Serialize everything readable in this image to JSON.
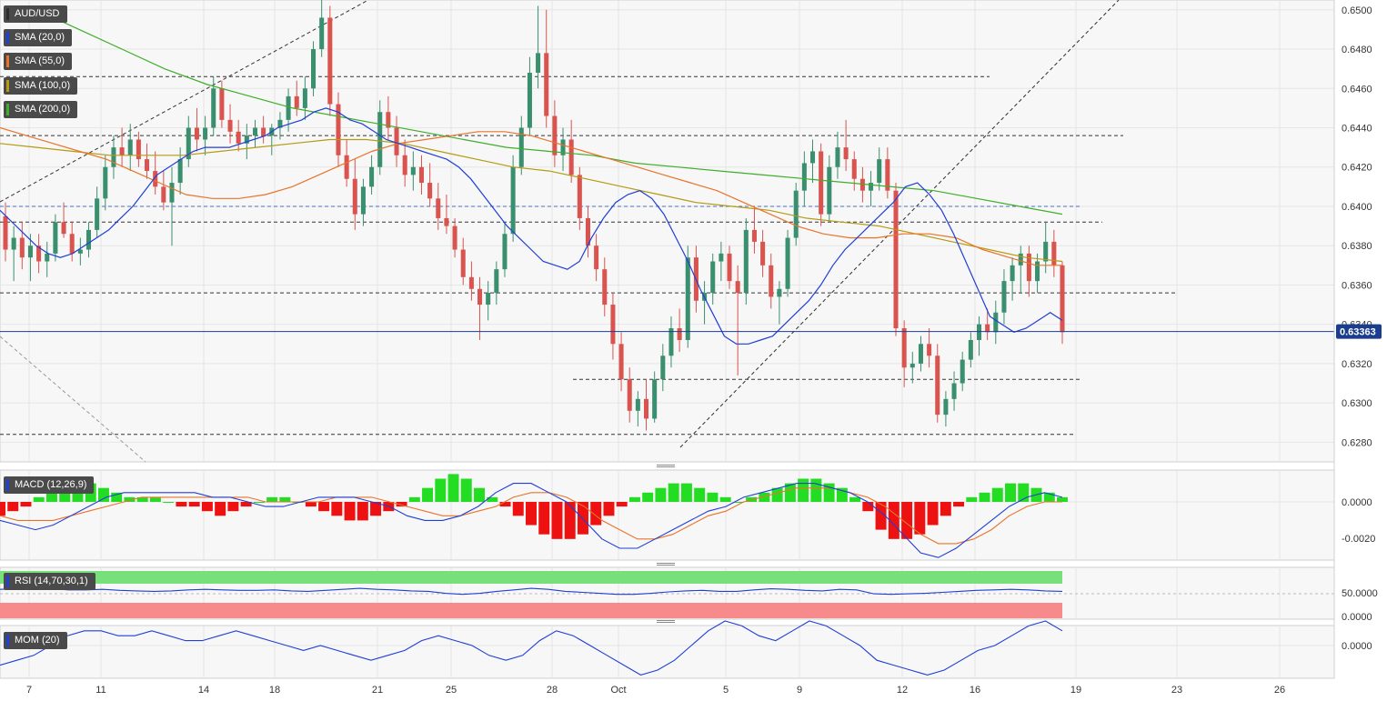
{
  "instrument": "AUD/USD",
  "current_price": "0.63363",
  "panels": {
    "price": {
      "indicators": [
        {
          "label": "SMA (20,0)",
          "color": "#1f3fd6"
        },
        {
          "label": "SMA (55,0)",
          "color": "#e8742a"
        },
        {
          "label": "SMA (100,0)",
          "color": "#b59a12"
        },
        {
          "label": "SMA (200,0)",
          "color": "#3fae2a"
        }
      ],
      "y_ticks": [
        "0.6500",
        "0.6480",
        "0.6460",
        "0.6440",
        "0.6420",
        "0.6400",
        "0.6380",
        "0.6360",
        "0.6340",
        "0.6320",
        "0.6300",
        "0.6280"
      ]
    },
    "macd": {
      "label": "MACD (12,26,9)",
      "y_ticks": [
        "0.0000",
        "-0.0020"
      ]
    },
    "rsi": {
      "label": "RSI (14,70,30,1)",
      "y_ticks": [
        "50.0000",
        "0.0000"
      ]
    },
    "mom": {
      "label": "MOM (20)",
      "y_ticks": [
        "0.0000"
      ]
    }
  },
  "x_ticks": [
    "7",
    "11",
    "14",
    "18",
    "21",
    "25",
    "28",
    "Oct",
    "5",
    "9",
    "12",
    "16",
    "19",
    "23",
    "26"
  ],
  "colors": {
    "up": "#3a8f6e",
    "down": "#d9534f",
    "grid": "#e6e6e6",
    "panel_bg": "#f7f7f7",
    "current_line": "#1a3d8f",
    "hist_up": "#22dd22",
    "hist_down": "#ee1111"
  },
  "chart_data": {
    "type": "candlestick",
    "title": "AUD/USD",
    "ylim": [
      0.627,
      0.6505
    ],
    "ohlc": [
      [
        0.6395,
        0.6402,
        0.6372,
        0.6378
      ],
      [
        0.6378,
        0.639,
        0.6362,
        0.6384
      ],
      [
        0.6384,
        0.6392,
        0.6368,
        0.6374
      ],
      [
        0.6374,
        0.6386,
        0.6362,
        0.638
      ],
      [
        0.638,
        0.6386,
        0.6366,
        0.6372
      ],
      [
        0.6372,
        0.6382,
        0.6364,
        0.6376
      ],
      [
        0.6376,
        0.6396,
        0.6372,
        0.6392
      ],
      [
        0.6392,
        0.6402,
        0.6384,
        0.6386
      ],
      [
        0.6386,
        0.6392,
        0.6372,
        0.6376
      ],
      [
        0.6376,
        0.6384,
        0.637,
        0.6378
      ],
      [
        0.6378,
        0.6392,
        0.6374,
        0.6388
      ],
      [
        0.6388,
        0.641,
        0.6384,
        0.6404
      ],
      [
        0.6404,
        0.6426,
        0.6398,
        0.642
      ],
      [
        0.642,
        0.6436,
        0.6414,
        0.643
      ],
      [
        0.643,
        0.644,
        0.642,
        0.6426
      ],
      [
        0.6426,
        0.6442,
        0.6418,
        0.6434
      ],
      [
        0.6434,
        0.6438,
        0.642,
        0.6424
      ],
      [
        0.6424,
        0.6432,
        0.6414,
        0.6418
      ],
      [
        0.6418,
        0.6428,
        0.6406,
        0.641
      ],
      [
        0.641,
        0.6418,
        0.6398,
        0.6402
      ],
      [
        0.6402,
        0.642,
        0.638,
        0.6412
      ],
      [
        0.6412,
        0.643,
        0.6406,
        0.6424
      ],
      [
        0.6424,
        0.6446,
        0.642,
        0.644
      ],
      [
        0.644,
        0.645,
        0.6428,
        0.6434
      ],
      [
        0.6434,
        0.6446,
        0.6426,
        0.644
      ],
      [
        0.644,
        0.6466,
        0.6436,
        0.646
      ],
      [
        0.646,
        0.6464,
        0.644,
        0.6444
      ],
      [
        0.6444,
        0.6452,
        0.6432,
        0.6438
      ],
      [
        0.6438,
        0.6444,
        0.6428,
        0.6432
      ],
      [
        0.6432,
        0.6442,
        0.6424,
        0.6436
      ],
      [
        0.6436,
        0.6444,
        0.643,
        0.644
      ],
      [
        0.644,
        0.6446,
        0.6432,
        0.6436
      ],
      [
        0.6436,
        0.6442,
        0.6426,
        0.644
      ],
      [
        0.644,
        0.6448,
        0.6434,
        0.6444
      ],
      [
        0.6444,
        0.646,
        0.6438,
        0.6456
      ],
      [
        0.6456,
        0.6464,
        0.6446,
        0.645
      ],
      [
        0.645,
        0.6466,
        0.6444,
        0.646
      ],
      [
        0.646,
        0.6484,
        0.6456,
        0.648
      ],
      [
        0.648,
        0.651,
        0.6476,
        0.6496
      ],
      [
        0.6496,
        0.6502,
        0.6446,
        0.6452
      ],
      [
        0.6452,
        0.6458,
        0.642,
        0.6426
      ],
      [
        0.6426,
        0.6434,
        0.641,
        0.6414
      ],
      [
        0.6414,
        0.6424,
        0.6388,
        0.6396
      ],
      [
        0.6396,
        0.6414,
        0.639,
        0.641
      ],
      [
        0.641,
        0.6426,
        0.6406,
        0.642
      ],
      [
        0.642,
        0.6454,
        0.6416,
        0.6448
      ],
      [
        0.6448,
        0.6456,
        0.6434,
        0.644
      ],
      [
        0.644,
        0.6446,
        0.642,
        0.6426
      ],
      [
        0.6426,
        0.6434,
        0.641,
        0.6416
      ],
      [
        0.6416,
        0.6428,
        0.6408,
        0.642
      ],
      [
        0.642,
        0.6426,
        0.6406,
        0.6412
      ],
      [
        0.6412,
        0.6422,
        0.64,
        0.6404
      ],
      [
        0.6404,
        0.6412,
        0.6388,
        0.6394
      ],
      [
        0.6394,
        0.6406,
        0.6386,
        0.639
      ],
      [
        0.639,
        0.6394,
        0.6374,
        0.6378
      ],
      [
        0.6378,
        0.6384,
        0.636,
        0.6364
      ],
      [
        0.6364,
        0.6372,
        0.6352,
        0.6358
      ],
      [
        0.6358,
        0.6364,
        0.6332,
        0.635
      ],
      [
        0.635,
        0.6362,
        0.6342,
        0.6356
      ],
      [
        0.6356,
        0.6372,
        0.635,
        0.6368
      ],
      [
        0.6368,
        0.6392,
        0.6364,
        0.6386
      ],
      [
        0.6386,
        0.6426,
        0.6382,
        0.642
      ],
      [
        0.642,
        0.6446,
        0.6416,
        0.644
      ],
      [
        0.644,
        0.6476,
        0.6436,
        0.6468
      ],
      [
        0.6468,
        0.6502,
        0.646,
        0.6478
      ],
      [
        0.6478,
        0.65,
        0.644,
        0.6446
      ],
      [
        0.6446,
        0.6454,
        0.642,
        0.6426
      ],
      [
        0.6426,
        0.644,
        0.6418,
        0.6434
      ],
      [
        0.6434,
        0.6444,
        0.6412,
        0.6416
      ],
      [
        0.6416,
        0.642,
        0.6388,
        0.6394
      ],
      [
        0.6394,
        0.64,
        0.6374,
        0.638
      ],
      [
        0.638,
        0.6386,
        0.6362,
        0.6368
      ],
      [
        0.6368,
        0.6374,
        0.6344,
        0.635
      ],
      [
        0.635,
        0.6356,
        0.6322,
        0.633
      ],
      [
        0.633,
        0.6336,
        0.6306,
        0.6312
      ],
      [
        0.6312,
        0.6318,
        0.629,
        0.6296
      ],
      [
        0.6296,
        0.6306,
        0.6288,
        0.6302
      ],
      [
        0.6302,
        0.6312,
        0.6286,
        0.6292
      ],
      [
        0.6292,
        0.6316,
        0.629,
        0.6312
      ],
      [
        0.6312,
        0.633,
        0.6306,
        0.6324
      ],
      [
        0.6324,
        0.6344,
        0.6318,
        0.6338
      ],
      [
        0.6338,
        0.6348,
        0.6326,
        0.6332
      ],
      [
        0.6332,
        0.638,
        0.6328,
        0.6374
      ],
      [
        0.6374,
        0.638,
        0.6346,
        0.6352
      ],
      [
        0.6352,
        0.6362,
        0.634,
        0.6356
      ],
      [
        0.6356,
        0.6376,
        0.635,
        0.6372
      ],
      [
        0.6372,
        0.6382,
        0.6362,
        0.6376
      ],
      [
        0.6376,
        0.638,
        0.6358,
        0.6362
      ],
      [
        0.6362,
        0.637,
        0.6314,
        0.6356
      ],
      [
        0.6356,
        0.6394,
        0.635,
        0.6388
      ],
      [
        0.6388,
        0.64,
        0.6376,
        0.6382
      ],
      [
        0.6382,
        0.6388,
        0.6364,
        0.637
      ],
      [
        0.637,
        0.6376,
        0.6348,
        0.6354
      ],
      [
        0.6354,
        0.6362,
        0.634,
        0.6358
      ],
      [
        0.6358,
        0.6388,
        0.6354,
        0.6384
      ],
      [
        0.6384,
        0.6412,
        0.638,
        0.6408
      ],
      [
        0.6408,
        0.6428,
        0.64,
        0.6422
      ],
      [
        0.6422,
        0.6434,
        0.6412,
        0.6428
      ],
      [
        0.6428,
        0.6432,
        0.639,
        0.6396
      ],
      [
        0.6396,
        0.6426,
        0.6392,
        0.642
      ],
      [
        0.642,
        0.6438,
        0.6414,
        0.643
      ],
      [
        0.643,
        0.6444,
        0.6418,
        0.6424
      ],
      [
        0.6424,
        0.6428,
        0.6408,
        0.6414
      ],
      [
        0.6414,
        0.642,
        0.6402,
        0.6408
      ],
      [
        0.6408,
        0.6418,
        0.64,
        0.6412
      ],
      [
        0.6412,
        0.643,
        0.6408,
        0.6424
      ],
      [
        0.6424,
        0.643,
        0.6404,
        0.6408
      ],
      [
        0.6408,
        0.6412,
        0.6334,
        0.6338
      ],
      [
        0.6338,
        0.6342,
        0.6308,
        0.6318
      ],
      [
        0.6318,
        0.6326,
        0.631,
        0.632
      ],
      [
        0.632,
        0.6334,
        0.6316,
        0.633
      ],
      [
        0.633,
        0.6338,
        0.6318,
        0.6324
      ],
      [
        0.6324,
        0.633,
        0.629,
        0.6294
      ],
      [
        0.6294,
        0.6306,
        0.6288,
        0.6302
      ],
      [
        0.6302,
        0.6316,
        0.6296,
        0.631
      ],
      [
        0.631,
        0.6326,
        0.6306,
        0.6322
      ],
      [
        0.6322,
        0.6336,
        0.6318,
        0.6332
      ],
      [
        0.6332,
        0.6344,
        0.6324,
        0.634
      ],
      [
        0.634,
        0.6348,
        0.6332,
        0.6336
      ],
      [
        0.6336,
        0.6352,
        0.633,
        0.6346
      ],
      [
        0.6346,
        0.6368,
        0.634,
        0.6362
      ],
      [
        0.6362,
        0.6374,
        0.6352,
        0.637
      ],
      [
        0.637,
        0.638,
        0.6356,
        0.6376
      ],
      [
        0.6376,
        0.638,
        0.6354,
        0.6362
      ],
      [
        0.6362,
        0.6376,
        0.6356,
        0.6372
      ],
      [
        0.6372,
        0.6392,
        0.6366,
        0.6382
      ],
      [
        0.6382,
        0.6388,
        0.6364,
        0.637
      ],
      [
        0.637,
        0.6372,
        0.633,
        0.6336
      ]
    ],
    "sma20": [
      0.6398,
      0.6392,
      0.6386,
      0.638,
      0.6376,
      0.6374,
      0.6376,
      0.638,
      0.6384,
      0.6388,
      0.6394,
      0.64,
      0.6408,
      0.6416,
      0.642,
      0.6424,
      0.6428,
      0.643,
      0.643,
      0.643,
      0.6432,
      0.6434,
      0.6436,
      0.644,
      0.6442,
      0.6444,
      0.6448,
      0.645,
      0.6448,
      0.6444,
      0.6442,
      0.6438,
      0.6434,
      0.6432,
      0.643,
      0.6428,
      0.6426,
      0.6424,
      0.642,
      0.6414,
      0.6406,
      0.6398,
      0.639,
      0.6384,
      0.6378,
      0.6372,
      0.637,
      0.6368,
      0.6372,
      0.6384,
      0.6394,
      0.6402,
      0.6406,
      0.6408,
      0.6404,
      0.6396,
      0.6384,
      0.6372,
      0.6358,
      0.6346,
      0.6334,
      0.633,
      0.633,
      0.6332,
      0.6334,
      0.634,
      0.6346,
      0.6352,
      0.636,
      0.637,
      0.6378,
      0.6384,
      0.639,
      0.6396,
      0.6402,
      0.641,
      0.6412,
      0.6406,
      0.6398,
      0.6386,
      0.6372,
      0.6358,
      0.6344,
      0.634,
      0.6336,
      0.6338,
      0.6342,
      0.6346,
      0.6342
    ],
    "sma55": [
      0.644,
      0.6436,
      0.6432,
      0.6428,
      0.6424,
      0.6418,
      0.6412,
      0.6406,
      0.6404,
      0.6404,
      0.6406,
      0.641,
      0.6416,
      0.6422,
      0.6428,
      0.6432,
      0.6434,
      0.6436,
      0.6438,
      0.6438,
      0.6436,
      0.6432,
      0.6428,
      0.6424,
      0.642,
      0.6416,
      0.6412,
      0.6408,
      0.6402,
      0.6396,
      0.639,
      0.6386,
      0.6384,
      0.6384,
      0.6386,
      0.6386,
      0.6384,
      0.6378,
      0.6374,
      0.637,
      0.637
    ],
    "sma100": [
      0.6432,
      0.643,
      0.6428,
      0.6426,
      0.6426,
      0.6426,
      0.6428,
      0.643,
      0.6432,
      0.6434,
      0.6434,
      0.6432,
      0.6428,
      0.6424,
      0.642,
      0.6418,
      0.6414,
      0.641,
      0.6406,
      0.6402,
      0.64,
      0.6398,
      0.6394,
      0.6392,
      0.639,
      0.6386,
      0.6382,
      0.6378,
      0.6374,
      0.6372
    ],
    "sma200": [
      0.65,
      0.649,
      0.648,
      0.647,
      0.6462,
      0.6456,
      0.645,
      0.6446,
      0.6442,
      0.6438,
      0.6434,
      0.643,
      0.6428,
      0.6426,
      0.6422,
      0.642,
      0.6418,
      0.6416,
      0.6414,
      0.6412,
      0.641,
      0.6408,
      0.6404,
      0.64,
      0.6396
    ],
    "horizontal_levels": [
      0.6466,
      0.6436,
      0.64,
      0.6392,
      0.6356,
      0.6312,
      0.6284
    ],
    "macd_hist": [
      -3,
      -2,
      -1,
      1,
      2,
      3,
      4,
      4,
      3,
      2,
      1,
      1,
      1,
      0,
      -1,
      -1,
      -2,
      -3,
      -2,
      -1,
      0,
      1,
      1,
      0,
      -1,
      -2,
      -3,
      -4,
      -4,
      -3,
      -2,
      -1,
      1,
      3,
      5,
      6,
      5,
      3,
      1,
      -1,
      -3,
      -5,
      -7,
      -8,
      -8,
      -7,
      -5,
      -3,
      -1,
      1,
      2,
      3,
      4,
      4,
      3,
      2,
      1,
      0,
      1,
      2,
      3,
      4,
      5,
      5,
      4,
      3,
      1,
      -2,
      -6,
      -8,
      -8,
      -7,
      -5,
      -3,
      -1,
      1,
      2,
      3,
      4,
      4,
      3,
      2,
      1
    ],
    "macd_line": [
      -4,
      -5,
      -6,
      -5,
      -3,
      -1,
      1,
      2,
      2,
      2,
      2,
      2,
      1,
      1,
      0,
      -1,
      -1,
      0,
      1,
      1,
      1,
      0,
      -1,
      -3,
      -4,
      -4,
      -3,
      -1,
      2,
      4,
      4,
      2,
      0,
      -4,
      -8,
      -10,
      -10,
      -8,
      -6,
      -4,
      -2,
      -1,
      1,
      2,
      3,
      4,
      4,
      3,
      2,
      0,
      -3,
      -7,
      -11,
      -12,
      -10,
      -7,
      -4,
      -1,
      1,
      2,
      1
    ],
    "signal_line": [
      -3,
      -4,
      -4,
      -4,
      -3,
      -2,
      -1,
      0,
      1,
      1,
      1,
      1,
      1,
      1,
      1,
      0,
      0,
      0,
      0,
      1,
      1,
      1,
      0,
      -1,
      -2,
      -3,
      -3,
      -2,
      -1,
      1,
      2,
      2,
      1,
      -1,
      -4,
      -6,
      -8,
      -8,
      -7,
      -5,
      -3,
      -2,
      0,
      1,
      2,
      3,
      3,
      3,
      2,
      1,
      -1,
      -4,
      -7,
      -9,
      -9,
      -8,
      -6,
      -3,
      -1,
      0,
      0
    ],
    "rsi": [
      56,
      57,
      58,
      57,
      55,
      55,
      56,
      54,
      53,
      52,
      53,
      55,
      56,
      55,
      54,
      54,
      55,
      53,
      52,
      54,
      56,
      58,
      56,
      55,
      53,
      52,
      48,
      46,
      48,
      52,
      55,
      58,
      56,
      52,
      50,
      48,
      46,
      46,
      48,
      51,
      53,
      54,
      52,
      52,
      55,
      57,
      56,
      54,
      53,
      56,
      55,
      47,
      46,
      47,
      48,
      50,
      52,
      54,
      55,
      56,
      55,
      53,
      52
    ],
    "mom": [
      -4,
      -3,
      -2,
      0,
      2,
      3,
      3,
      2,
      2,
      3,
      2,
      1,
      1,
      2,
      3,
      2,
      1,
      0,
      -1,
      0,
      -1,
      -2,
      -3,
      -2,
      -1,
      1,
      2,
      1,
      0,
      -2,
      -3,
      -2,
      1,
      3,
      2,
      0,
      -2,
      -4,
      -6,
      -5,
      -3,
      0,
      3,
      5,
      4,
      2,
      1,
      3,
      5,
      4,
      2,
      0,
      -3,
      -4,
      -5,
      -6,
      -5,
      -3,
      -1,
      0,
      2,
      4,
      5,
      3
    ]
  }
}
